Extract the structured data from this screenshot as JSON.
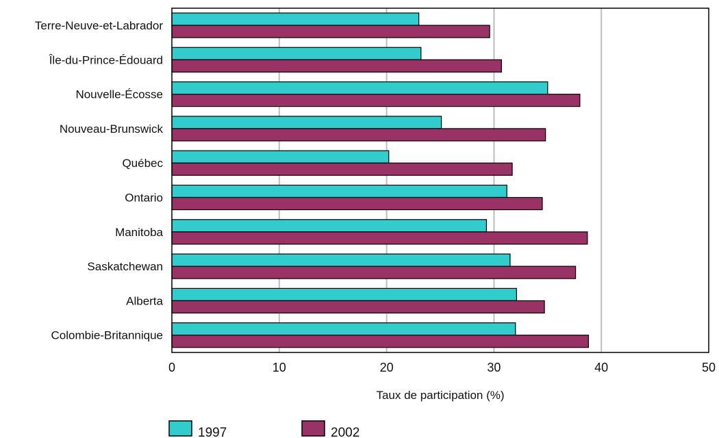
{
  "chart_data": {
    "type": "bar",
    "orientation": "horizontal",
    "categories": [
      "Terre-Neuve-et-Labrador",
      "Île-du-Prince-Édouard",
      "Nouvelle-Écosse",
      "Nouveau-Brunswick",
      "Québec",
      "Ontario",
      "Manitoba",
      "Saskatchewan",
      "Alberta",
      "Colombie-Britannique"
    ],
    "series": [
      {
        "name": "1997",
        "color": "#33cccc",
        "values": [
          23.0,
          23.2,
          35.0,
          25.1,
          20.2,
          31.2,
          29.3,
          31.5,
          32.1,
          32.0
        ]
      },
      {
        "name": "2002",
        "color": "#993366",
        "values": [
          29.6,
          30.7,
          38.0,
          34.8,
          31.7,
          34.5,
          38.7,
          37.6,
          34.7,
          38.8
        ]
      }
    ],
    "xlabel": "Taux de participation (%)",
    "ylabel": "",
    "xlim": [
      0,
      50
    ],
    "xticks": [
      "0",
      "10",
      "20",
      "30",
      "40",
      "50"
    ],
    "grid": "vertical",
    "legend": "bottom-left"
  }
}
